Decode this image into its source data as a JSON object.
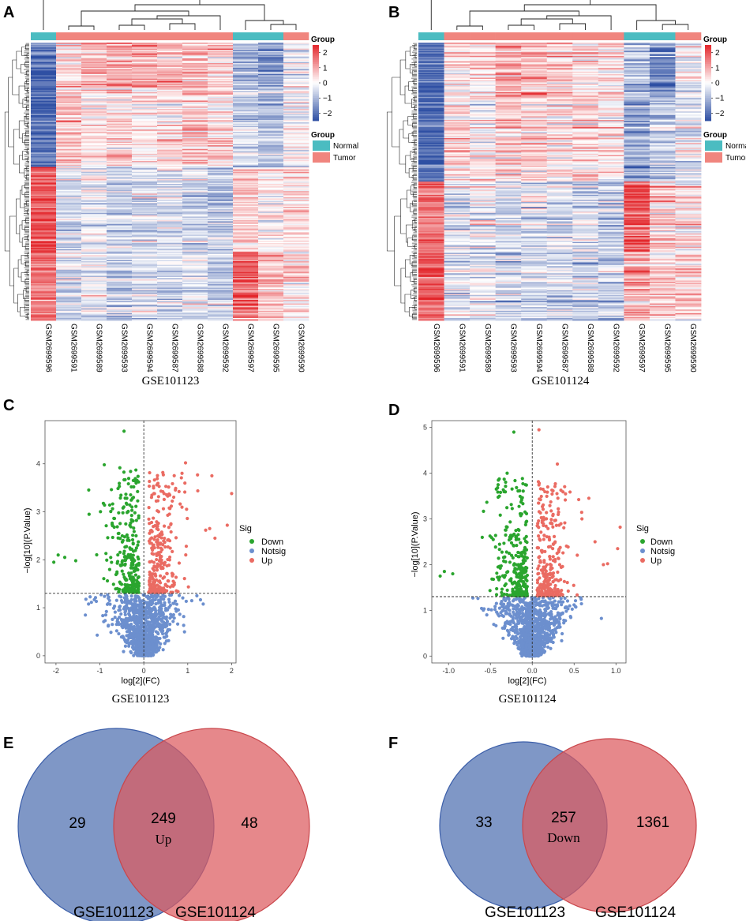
{
  "figure": {
    "panel_labels": [
      "A",
      "B",
      "C",
      "D",
      "E",
      "F"
    ],
    "colors": {
      "normal": "#4bbcc1",
      "tumor": "#f0857e",
      "heat_low": "#2e4fa3",
      "heat_mid": "#ffffff",
      "heat_high": "#e3262b",
      "down": "#2aa52e",
      "notsig": "#6c8fce",
      "up": "#ea6b62",
      "venn_left": "#4e6fb0",
      "venn_right": "#dd5a5e"
    }
  },
  "chart_data": [
    {
      "panel": "A",
      "type": "heatmap",
      "title": "GSE101123",
      "samples": [
        "GSM2699596",
        "GSM2699591",
        "GSM2699589",
        "GSM2699593",
        "GSM2699594",
        "GSM2699587",
        "GSM2699588",
        "GSM2699592",
        "GSM2699597",
        "GSM2699595",
        "GSM2699590"
      ],
      "groups": [
        "Normal",
        "Tumor",
        "Tumor",
        "Tumor",
        "Tumor",
        "Tumor",
        "Tumor",
        "Tumor",
        "Normal",
        "Normal",
        "Tumor"
      ],
      "color_scale": {
        "title": "Group",
        "ticks": [
          "2",
          "1",
          "0",
          "−1",
          "−2"
        ],
        "range": [
          -2.5,
          2.5
        ]
      },
      "legend": {
        "title": "Group",
        "entries": [
          "Normal",
          "Tumor"
        ]
      },
      "row_blocks": [
        {
          "fraction": 0.16,
          "means": [
            -2.0,
            0.3,
            0.8,
            1.0,
            0.9,
            0.7,
            0.7,
            0.6,
            -1.0,
            -1.6,
            -0.2
          ]
        },
        {
          "fraction": 0.29,
          "means": [
            -2.1,
            0.6,
            0.3,
            0.5,
            0.2,
            0.4,
            0.7,
            0.5,
            -0.6,
            -0.9,
            -0.1
          ]
        },
        {
          "fraction": 0.3,
          "means": [
            2.0,
            -0.3,
            -0.2,
            -0.6,
            -0.5,
            -0.3,
            -0.5,
            -0.8,
            0.6,
            0.2,
            0.4
          ]
        },
        {
          "fraction": 0.25,
          "means": [
            1.5,
            -0.6,
            -0.3,
            -0.7,
            -0.5,
            -0.6,
            -0.4,
            -0.8,
            1.8,
            0.7,
            0.3
          ]
        }
      ]
    },
    {
      "panel": "B",
      "type": "heatmap",
      "title": "GSE101124",
      "samples": [
        "GSM2699596",
        "GSM2699591",
        "GSM2699589",
        "GSM2699593",
        "GSM2699594",
        "GSM2699587",
        "GSM2699588",
        "GSM2699592",
        "GSM2699597",
        "GSM2699595",
        "GSM2699590"
      ],
      "groups": [
        "Normal",
        "Tumor",
        "Tumor",
        "Tumor",
        "Tumor",
        "Tumor",
        "Tumor",
        "Tumor",
        "Normal",
        "Normal",
        "Tumor"
      ],
      "color_scale": {
        "title": "Group",
        "ticks": [
          "2",
          "1",
          "0",
          "−1",
          "−2"
        ],
        "range": [
          -2.5,
          2.5
        ]
      },
      "legend": {
        "title": "Group",
        "entries": [
          "Normal",
          "Tumor"
        ]
      },
      "row_blocks": [
        {
          "fraction": 0.2,
          "means": [
            -2.0,
            0.4,
            0.4,
            0.9,
            0.8,
            0.6,
            0.4,
            0.5,
            -0.8,
            -1.5,
            -0.2
          ]
        },
        {
          "fraction": 0.3,
          "means": [
            -2.0,
            0.4,
            0.2,
            0.6,
            0.6,
            0.3,
            0.5,
            0.3,
            -1.2,
            -0.7,
            -0.3
          ]
        },
        {
          "fraction": 0.25,
          "means": [
            1.6,
            -0.4,
            -0.2,
            -0.5,
            -0.3,
            -0.4,
            -0.5,
            -0.7,
            1.8,
            0.6,
            0.3
          ]
        },
        {
          "fraction": 0.25,
          "means": [
            2.0,
            -0.5,
            -0.3,
            -0.6,
            -0.5,
            -0.6,
            -0.6,
            -0.6,
            0.9,
            0.4,
            0.5
          ]
        }
      ]
    },
    {
      "panel": "C",
      "type": "scatter",
      "title": "GSE101123",
      "xlabel": "log[2](FC)",
      "ylabel": "−log[10](P.Value)",
      "xlim": [
        -2.25,
        2.1
      ],
      "ylim": [
        -0.15,
        4.9
      ],
      "xticks": [
        -2,
        -1,
        0,
        1,
        2
      ],
      "yticks": [
        0,
        1,
        2,
        3,
        4
      ],
      "threshold_y": 1.3,
      "threshold_x": 0,
      "legend": {
        "title": "Sig",
        "entries": [
          "Down",
          "Notsig",
          "Up"
        ]
      },
      "n_points": {
        "notsig": 1000,
        "down": 290,
        "up": 290
      },
      "highlighted_points": [
        [
          -0.45,
          4.68
        ],
        [
          -2.05,
          1.95
        ],
        [
          -1.95,
          2.1
        ],
        [
          -1.55,
          1.98
        ],
        [
          -1.8,
          2.05
        ],
        [
          1.55,
          3.75
        ],
        [
          2.0,
          3.38
        ],
        [
          1.9,
          2.72
        ],
        [
          1.62,
          2.45
        ],
        [
          0.95,
          4.02
        ],
        [
          -0.9,
          3.98
        ],
        [
          1.5,
          2.65
        ]
      ]
    },
    {
      "panel": "D",
      "type": "scatter",
      "title": "GSE101124",
      "xlabel": "log[2](FC)",
      "ylabel": "−log[10](P.Value)",
      "xlim": [
        -1.2,
        1.12
      ],
      "ylim": [
        -0.15,
        5.15
      ],
      "xticks": [
        -1.0,
        -0.5,
        0.0,
        0.5,
        1.0
      ],
      "yticks": [
        0,
        1,
        2,
        3,
        4,
        5
      ],
      "threshold_y": 1.3,
      "threshold_x": 0,
      "legend": {
        "title": "Sig",
        "entries": [
          "Down",
          "Notsig",
          "Up"
        ]
      },
      "n_points": {
        "notsig": 1000,
        "down": 290,
        "up": 290
      },
      "highlighted_points": [
        [
          -0.22,
          4.9
        ],
        [
          0.08,
          4.95
        ],
        [
          -1.05,
          1.85
        ],
        [
          -1.1,
          1.75
        ],
        [
          -0.95,
          1.8
        ],
        [
          1.05,
          2.82
        ],
        [
          1.02,
          2.35
        ],
        [
          0.85,
          2.0
        ],
        [
          0.9,
          2.02
        ],
        [
          -0.3,
          4.0
        ],
        [
          0.3,
          4.2
        ],
        [
          0.75,
          2.5
        ]
      ]
    },
    {
      "panel": "E",
      "type": "venn",
      "sets": [
        "GSE101123",
        "GSE101124"
      ],
      "left_only": "29",
      "intersection": "249",
      "right_only": "48",
      "intersection_label": "Up"
    },
    {
      "panel": "F",
      "type": "venn",
      "sets": [
        "GSE101123",
        "GSE101124"
      ],
      "left_only": "33",
      "intersection": "257",
      "right_only": "1361",
      "intersection_label": "Down"
    }
  ]
}
